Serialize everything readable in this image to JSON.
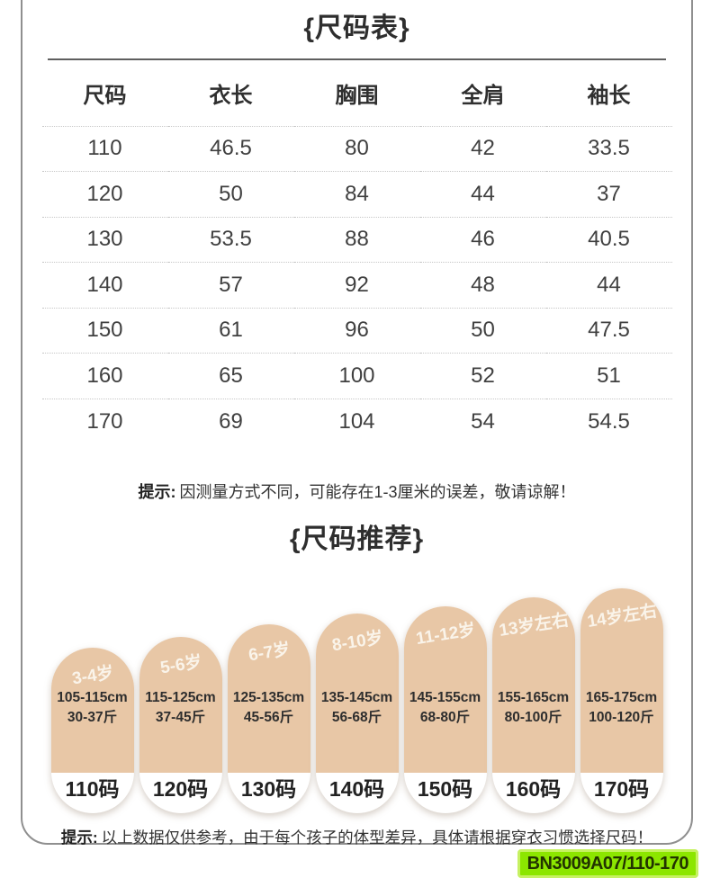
{
  "colors": {
    "capsule_fill": "#e8c7a6",
    "badge_background": "#8ce600",
    "badge_glow": "#c6f163",
    "badge_text": "#223300",
    "card_border": "#8f8f8f"
  },
  "size_table": {
    "title": "{尺码表}",
    "headers": [
      "尺码",
      "衣长",
      "胸围",
      "全肩",
      "袖长"
    ],
    "rows": [
      [
        "110",
        "46.5",
        "80",
        "42",
        "33.5"
      ],
      [
        "120",
        "50",
        "84",
        "44",
        "37"
      ],
      [
        "130",
        "53.5",
        "88",
        "46",
        "40.5"
      ],
      [
        "140",
        "57",
        "92",
        "48",
        "44"
      ],
      [
        "150",
        "61",
        "96",
        "50",
        "47.5"
      ],
      [
        "160",
        "65",
        "100",
        "52",
        "51"
      ],
      [
        "170",
        "69",
        "104",
        "54",
        "54.5"
      ]
    ],
    "note_label": "提示:",
    "note_text": "因测量方式不同，可能存在1-3厘米的误差，敬请谅解！"
  },
  "size_recommend": {
    "title": "{尺码推荐}",
    "items": [
      {
        "age": "3-4岁",
        "height": "105-115cm",
        "weight": "30-37斤",
        "size": "110码"
      },
      {
        "age": "5-6岁",
        "height": "115-125cm",
        "weight": "37-45斤",
        "size": "120码"
      },
      {
        "age": "6-7岁",
        "height": "125-135cm",
        "weight": "45-56斤",
        "size": "130码"
      },
      {
        "age": "8-10岁",
        "height": "135-145cm",
        "weight": "56-68斤",
        "size": "140码"
      },
      {
        "age": "11-12岁",
        "height": "145-155cm",
        "weight": "68-80斤",
        "size": "150码"
      },
      {
        "age": "13岁左右",
        "height": "155-165cm",
        "weight": "80-100斤",
        "size": "160码"
      },
      {
        "age": "14岁左右",
        "height": "165-175cm",
        "weight": "100-120斤",
        "size": "170码"
      }
    ],
    "note_label": "提示:",
    "note_text": "以上数据仅供参考，由于每个孩子的体型差异，具体请根据穿衣习惯选择尺码！"
  },
  "footer": {
    "product_code": "BN3009A07/110-170"
  }
}
